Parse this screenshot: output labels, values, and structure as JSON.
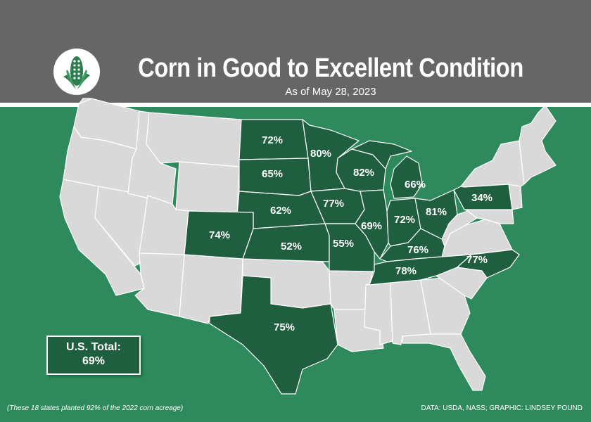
{
  "title": "Corn in Good to Excellent Condition",
  "subtitle": "As of May 28, 2023",
  "colors": {
    "header": "#666666",
    "background": "#2e8a5c",
    "highlight": "#1f5e3f",
    "other": "#d9d9d9",
    "border": "#ffffff"
  },
  "logo_icon": "corn-icon",
  "states": [
    {
      "id": "ND",
      "value": "72%"
    },
    {
      "id": "SD",
      "value": "65%"
    },
    {
      "id": "NE",
      "value": "62%"
    },
    {
      "id": "KS",
      "value": "52%"
    },
    {
      "id": "CO",
      "value": "74%"
    },
    {
      "id": "TX",
      "value": "75%"
    },
    {
      "id": "MN",
      "value": "80%"
    },
    {
      "id": "IA",
      "value": "77%"
    },
    {
      "id": "MO",
      "value": "55%"
    },
    {
      "id": "WI",
      "value": "82%"
    },
    {
      "id": "IL",
      "value": "69%"
    },
    {
      "id": "MI",
      "value": "66%"
    },
    {
      "id": "IN",
      "value": "72%"
    },
    {
      "id": "OH",
      "value": "81%"
    },
    {
      "id": "PA",
      "value": "34%"
    },
    {
      "id": "KY",
      "value": "76%"
    },
    {
      "id": "TN",
      "value": "78%"
    },
    {
      "id": "NC",
      "value": "77%"
    }
  ],
  "total": {
    "label": "U.S. Total:",
    "value": "69%"
  },
  "footnote": "(These 18 states planted 92% of the 2022 corn acreage)",
  "credit": "DATA: USDA, NASS; GRAPHIC: LINDSEY POUND"
}
